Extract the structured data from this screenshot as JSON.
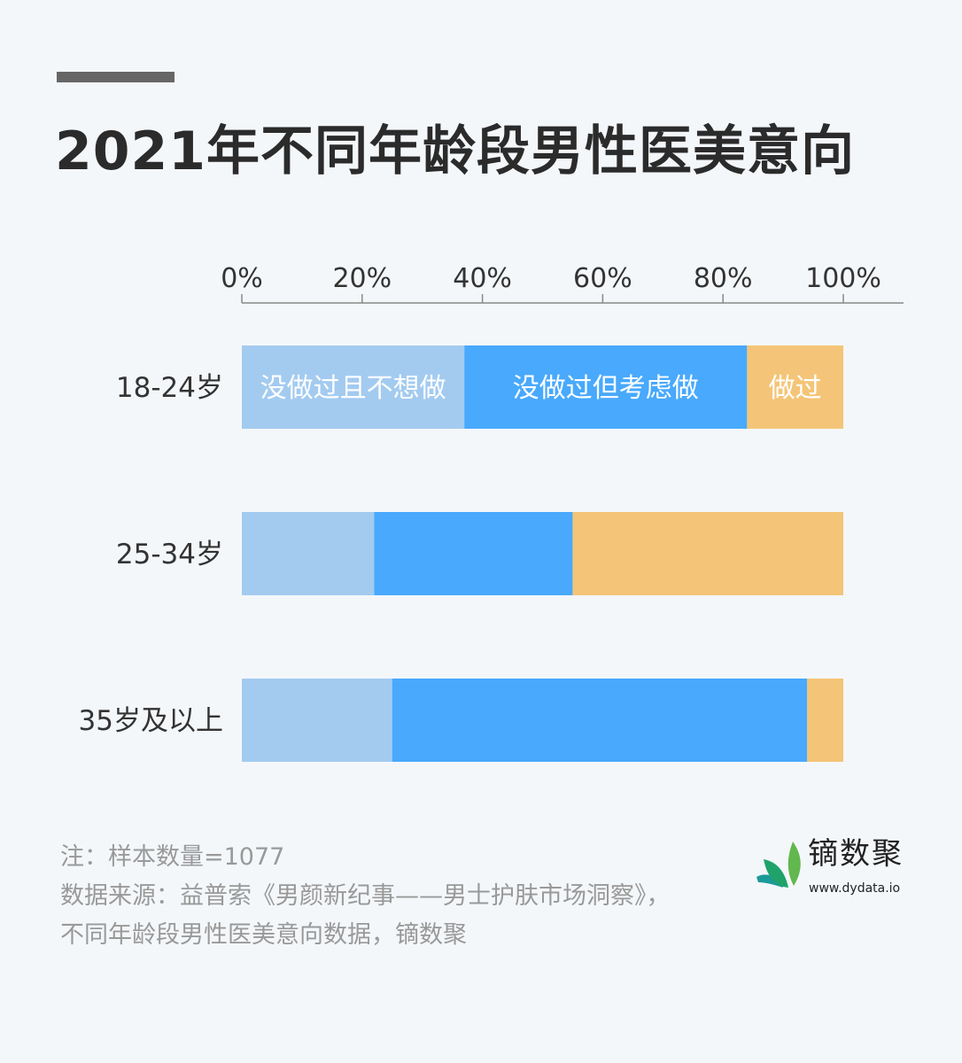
{
  "title": "2021年不同年龄段男性医美意向",
  "chart_data": {
    "type": "bar",
    "orientation": "horizontal-stacked-percent",
    "title": "2021年不同年龄段男性医美意向",
    "categories": [
      "18-24岁",
      "25-34岁",
      "35岁及以上"
    ],
    "series": [
      {
        "name": "没做过且不想做",
        "color": "#a3cbf0",
        "values": [
          37,
          22,
          25
        ]
      },
      {
        "name": "没做过但考虑做",
        "color": "#48a9fd",
        "values": [
          47,
          33,
          69
        ]
      },
      {
        "name": "做过",
        "color": "#f4c578",
        "values": [
          16,
          45,
          6
        ]
      }
    ],
    "xticks": [
      "0%",
      "20%",
      "40%",
      "60%",
      "80%",
      "100%"
    ],
    "xlim": [
      0,
      100
    ],
    "legend": "inline-first-row",
    "grid": false
  },
  "notes": {
    "sample": "注：样本数量=1077",
    "source": "数据来源：益普索《男颜新纪事——男士护肤市场洞察》，不同年龄段男性医美意向数据，镝数聚"
  },
  "logo": {
    "name": "镝数聚",
    "url": "www.dydata.io"
  }
}
